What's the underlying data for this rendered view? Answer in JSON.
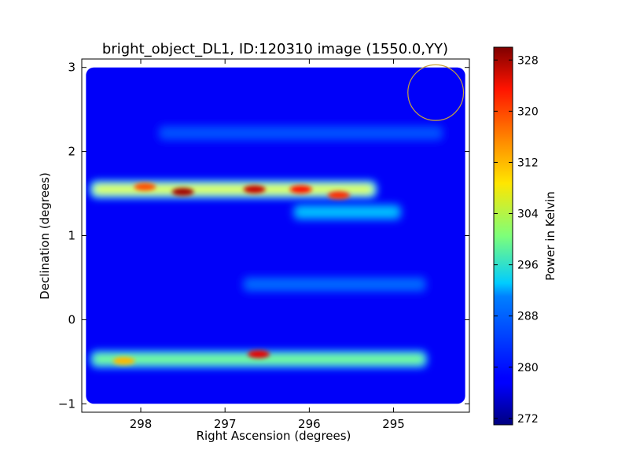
{
  "chart_data": {
    "type": "heatmap",
    "title": "bright_object_DL1, ID:120310 image (1550.0,YY)",
    "xlabel": "Right Ascension (degrees)",
    "ylabel": "Declination (degrees)",
    "xlim": [
      298.7,
      294.1
    ],
    "ylim": [
      -1.1,
      3.1
    ],
    "x_inverted": true,
    "xticks": [
      298,
      297,
      296,
      295
    ],
    "xtick_labels": [
      "298",
      "297",
      "296",
      "295"
    ],
    "yticks": [
      -1,
      0,
      1,
      2,
      3
    ],
    "ytick_labels": [
      "−1",
      "0",
      "1",
      "2",
      "3"
    ],
    "colorbar": {
      "label": "Power in Kelvin",
      "range": [
        271,
        330
      ],
      "ticks": [
        272,
        280,
        288,
        296,
        304,
        312,
        320,
        328
      ],
      "tick_labels": [
        "272",
        "280",
        "288",
        "296",
        "304",
        "312",
        "320",
        "328"
      ],
      "colormap": "jet"
    },
    "image": {
      "extent_ra": [
        298.65,
        294.15
      ],
      "extent_dec": [
        -1.0,
        3.0
      ],
      "background_kelvin": 278,
      "bright_bands": [
        {
          "dec": 1.55,
          "ra_start": 298.6,
          "ra_end": 295.2,
          "peak_kelvin": 322
        },
        {
          "dec": 1.28,
          "ra_start": 296.2,
          "ra_end": 294.9,
          "peak_kelvin": 296
        },
        {
          "dec": 0.42,
          "ra_start": 296.8,
          "ra_end": 294.6,
          "peak_kelvin": 288
        },
        {
          "dec": -0.47,
          "ra_start": 298.6,
          "ra_end": 294.6,
          "peak_kelvin": 312
        },
        {
          "dec": 2.22,
          "ra_start": 297.8,
          "ra_end": 294.4,
          "peak_kelvin": 286
        }
      ],
      "hot_spots": [
        {
          "ra": 297.5,
          "dec": 1.52,
          "kelvin": 328
        },
        {
          "ra": 296.65,
          "dec": 1.55,
          "kelvin": 326
        },
        {
          "ra": 296.1,
          "dec": 1.55,
          "kelvin": 322
        },
        {
          "ra": 297.95,
          "dec": 1.58,
          "kelvin": 318
        },
        {
          "ra": 295.65,
          "dec": 1.48,
          "kelvin": 320
        },
        {
          "ra": 296.6,
          "dec": -0.41,
          "kelvin": 324
        },
        {
          "ra": 298.2,
          "dec": -0.49,
          "kelvin": 312
        }
      ],
      "circle_marker": {
        "ra": 294.5,
        "dec": 2.7,
        "radius_deg": 0.33,
        "color": "#c8a43c"
      }
    }
  },
  "colors": {
    "axes": "#000000",
    "circle": "#c8a43c",
    "background": "#ffffff"
  }
}
